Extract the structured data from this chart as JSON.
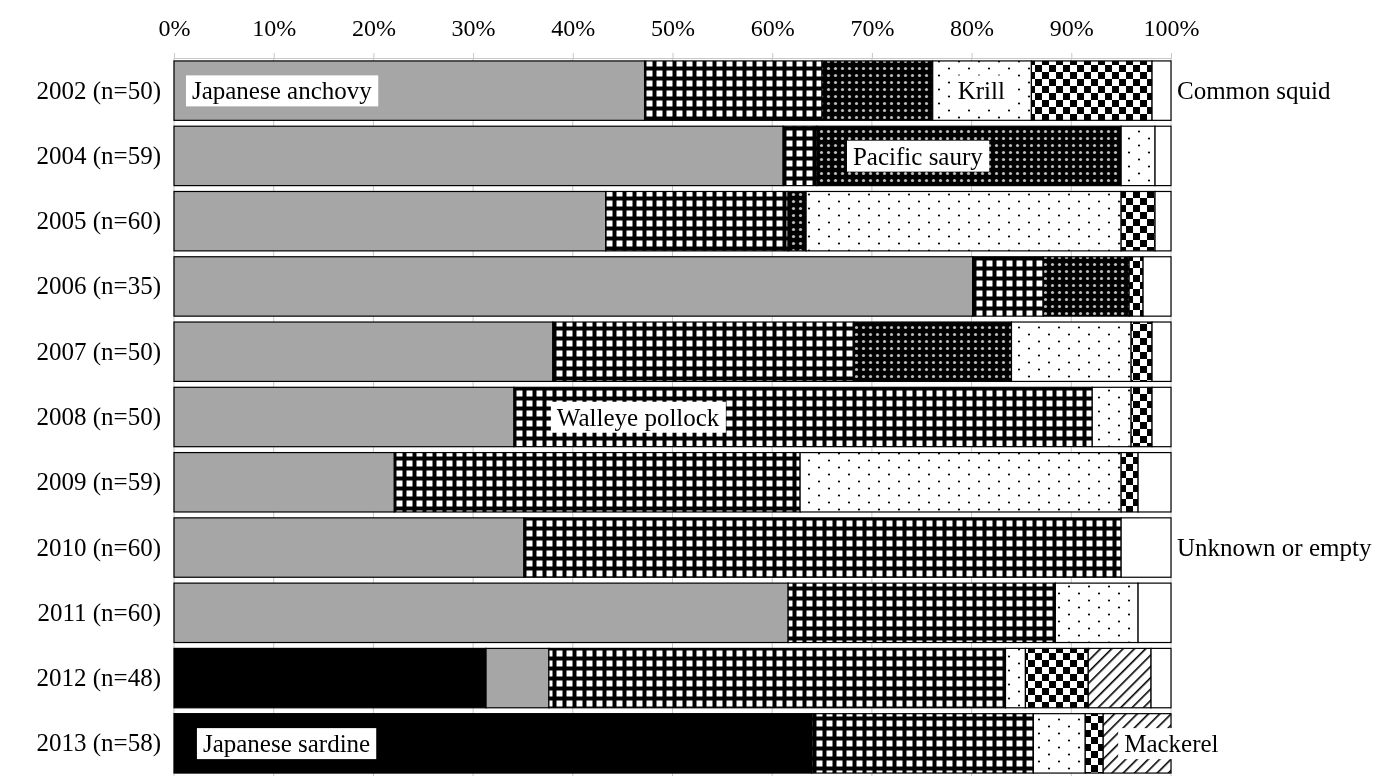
{
  "chart_data": {
    "type": "bar",
    "orientation": "horizontal",
    "stacked": true,
    "grid": "x",
    "categories": [
      "2002 (n=50)",
      "2004 (n=59)",
      "2005 (n=60)",
      "2006 (n=35)",
      "2007 (n=50)",
      "2008 (n=50)",
      "2009 (n=59)",
      "2010 (n=60)",
      "2011 (n=60)",
      "2012 (n=48)",
      "2013 (n=58)"
    ],
    "xlim": [
      0,
      100
    ],
    "xticks": [
      {
        "value": 0,
        "label": "0%"
      },
      {
        "value": 10,
        "label": "10%"
      },
      {
        "value": 20,
        "label": "20%"
      },
      {
        "value": 30,
        "label": "30%"
      },
      {
        "value": 40,
        "label": "40%"
      },
      {
        "value": 50,
        "label": "50%"
      },
      {
        "value": 60,
        "label": "60%"
      },
      {
        "value": 70,
        "label": "70%"
      },
      {
        "value": 80,
        "label": "80%"
      },
      {
        "value": 90,
        "label": "90%"
      },
      {
        "value": 100,
        "label": "100%"
      }
    ],
    "series": [
      {
        "color": "#000000",
        "values": [
          0,
          0,
          0,
          0,
          0,
          0,
          0,
          0,
          0,
          31.3,
          64.0
        ]
      },
      {
        "color": "#a6a6a6",
        "values": [
          47.2,
          61.1,
          43.3,
          80.1,
          38.0,
          34.1,
          22.1,
          35.1,
          61.6,
          6.3,
          0
        ]
      },
      {
        "color": "#000000",
        "values": [
          17.8,
          3.4,
          18.3,
          7.1,
          30.2,
          58.0,
          40.7,
          59.9,
          26.8,
          45.8,
          22.2
        ]
      },
      {
        "color": "#000000",
        "values": [
          11.1,
          30.5,
          1.8,
          8.6,
          15.8,
          0,
          0,
          0,
          0,
          0,
          0
        ]
      },
      {
        "color": "#000000",
        "values": [
          9.9,
          3.4,
          31.6,
          0,
          12.0,
          3.9,
          32.2,
          0,
          8.3,
          2.0,
          5.2
        ]
      },
      {
        "color": "#000000",
        "values": [
          12.1,
          0,
          3.4,
          1.4,
          2.1,
          2.1,
          1.7,
          0,
          0,
          6.3,
          1.8
        ]
      },
      {
        "color": "#000000",
        "values": [
          0,
          0,
          0,
          0,
          0,
          0,
          0,
          0,
          0,
          6.3,
          6.8
        ]
      },
      {
        "color": "#ffffff",
        "values": [
          1.9,
          1.6,
          1.6,
          2.8,
          1.9,
          1.9,
          3.3,
          5.0,
          3.3,
          2.0,
          0
        ]
      }
    ],
    "annotations": [
      {
        "text": "Japanese anchovy",
        "x": 1.2,
        "y": "2002 (n=50)"
      },
      {
        "text": "Krill",
        "x": 78.0,
        "y": "2002 (n=50)"
      },
      {
        "text": "Common squid",
        "x": 100,
        "y": "2002 (n=50)"
      },
      {
        "text": "Pacific saury",
        "x": 67.5,
        "y": "2004 (n=59)"
      },
      {
        "text": "Walleye pollock",
        "x": 37.8,
        "y": "2008 (n=50)"
      },
      {
        "text": "Unknown or empty",
        "x": 100,
        "y": "2010 (n=60)"
      },
      {
        "text": "Japanese sardine",
        "x": 2.3,
        "y": "2013 (n=58)"
      },
      {
        "text": "Mackerel",
        "x": 94.7,
        "y": "2013 (n=58)"
      }
    ]
  }
}
